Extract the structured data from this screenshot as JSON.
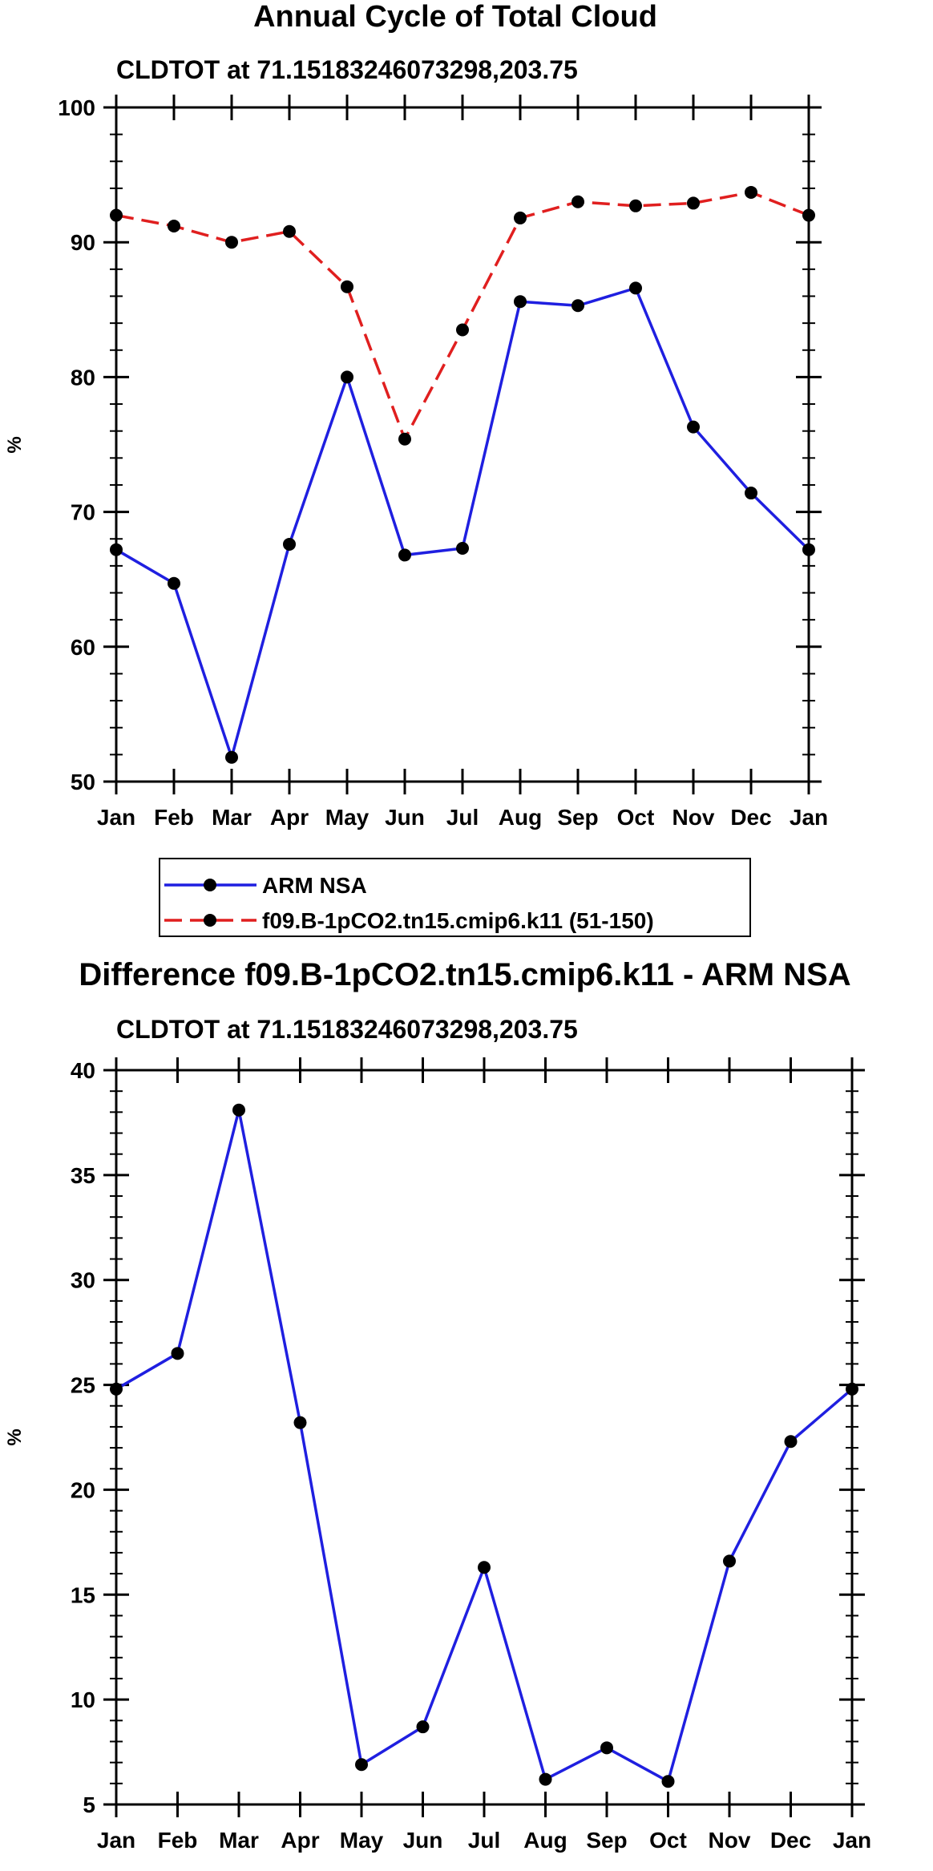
{
  "chart_data": [
    {
      "type": "line",
      "title": "Annual Cycle of Total Cloud",
      "subtitle": "CLDTOT at 71.15183246073298,203.75",
      "xlabel": "",
      "ylabel": "%",
      "categories": [
        "Jan",
        "Feb",
        "Mar",
        "Apr",
        "May",
        "Jun",
        "Jul",
        "Aug",
        "Sep",
        "Oct",
        "Nov",
        "Dec",
        "Jan"
      ],
      "ylim": [
        50,
        100
      ],
      "yticks": [
        50,
        60,
        70,
        80,
        90,
        100
      ],
      "ytick_labels": [
        "50",
        "60",
        "70",
        "80",
        "90",
        "100"
      ],
      "grid": false,
      "series": [
        {
          "name": "ARM NSA",
          "color": "#1f1fe0",
          "dash": "solid",
          "values": [
            67.2,
            64.7,
            51.8,
            67.6,
            80.0,
            66.8,
            67.3,
            85.6,
            85.3,
            86.6,
            76.3,
            71.4,
            67.2
          ]
        },
        {
          "name": "f09.B-1pCO2.tn15.cmip6.k11 (51-150)",
          "color": "#e01f1f",
          "dash": "dashed",
          "values": [
            92.0,
            91.2,
            90.0,
            90.8,
            86.7,
            75.4,
            83.5,
            91.8,
            93.0,
            92.7,
            92.9,
            93.7,
            92.0
          ]
        }
      ],
      "legend": {
        "position": "bottom-left",
        "entries": [
          "ARM NSA",
          "f09.B-1pCO2.tn15.cmip6.k11 (51-150)"
        ]
      }
    },
    {
      "type": "line",
      "title": "Difference f09.B-1pCO2.tn15.cmip6.k11 - ARM NSA",
      "subtitle": "CLDTOT at 71.15183246073298,203.75",
      "xlabel": "",
      "ylabel": "%",
      "categories": [
        "Jan",
        "Feb",
        "Mar",
        "Apr",
        "May",
        "Jun",
        "Jul",
        "Aug",
        "Sep",
        "Oct",
        "Nov",
        "Dec",
        "Jan"
      ],
      "ylim": [
        5,
        40
      ],
      "yticks": [
        5,
        10,
        15,
        20,
        25,
        30,
        35,
        40
      ],
      "ytick_labels": [
        "5",
        "10",
        "15",
        "20",
        "25",
        "30",
        "35",
        "40"
      ],
      "grid": false,
      "series": [
        {
          "name": "Difference",
          "color": "#1f1fe0",
          "dash": "solid",
          "values": [
            24.8,
            26.5,
            38.1,
            23.2,
            6.9,
            8.7,
            16.3,
            6.2,
            7.7,
            6.1,
            16.6,
            22.3,
            24.8
          ]
        }
      ]
    }
  ]
}
